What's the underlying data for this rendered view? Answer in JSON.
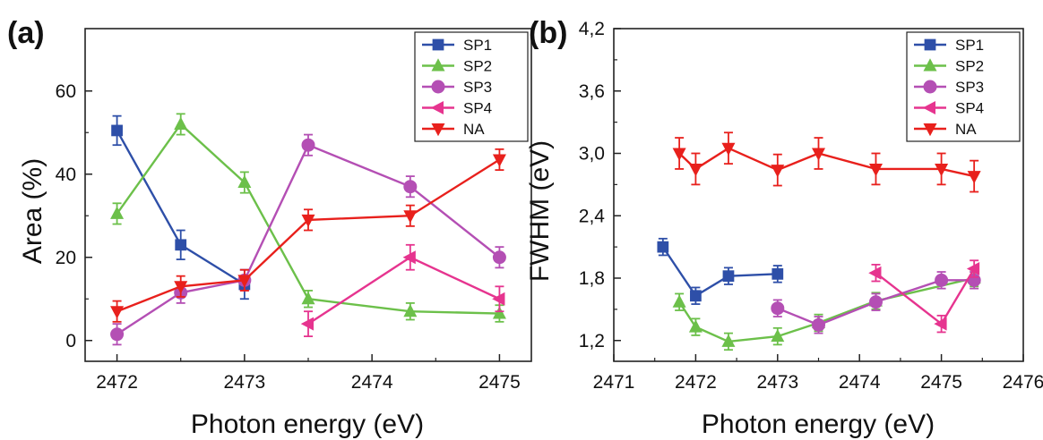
{
  "chart_data": [
    {
      "panel_label": "(a)",
      "type": "line",
      "xlabel": "Photon energy (eV)",
      "ylabel": "Area (%)",
      "xlim": [
        2471.75,
        2475.25
      ],
      "ylim": [
        -5,
        75
      ],
      "xticks": [
        2472,
        2473,
        2474,
        2475
      ],
      "xtick_labels": [
        "2472",
        "2473",
        "2474",
        "2475"
      ],
      "yticks": [
        0,
        20,
        40,
        60
      ],
      "ytick_labels": [
        "0",
        "20",
        "40",
        "60"
      ],
      "legend_position": "top-right",
      "series": [
        {
          "name": "SP1",
          "color": "#2e4fa8",
          "marker": "square",
          "points": [
            [
              2472,
              50.5,
              3.5
            ],
            [
              2472.5,
              23,
              3.5
            ],
            [
              2473,
              13.5,
              3.5
            ]
          ]
        },
        {
          "name": "SP2",
          "color": "#6cc04a",
          "marker": "triangle-up",
          "points": [
            [
              2472,
              30.5,
              2.5
            ],
            [
              2472.5,
              52,
              2.5
            ],
            [
              2473,
              38,
              2.5
            ],
            [
              2473.5,
              10,
              2
            ],
            [
              2474.3,
              7,
              2
            ],
            [
              2475,
              6.5,
              2
            ]
          ]
        },
        {
          "name": "SP3",
          "color": "#b44fb4",
          "marker": "circle",
          "points": [
            [
              2472,
              1.5,
              2.5
            ],
            [
              2472.5,
              11.5,
              2.5
            ],
            [
              2473,
              14.5,
              2.5
            ],
            [
              2473.5,
              47,
              2.5
            ],
            [
              2474.3,
              37,
              2.5
            ],
            [
              2475,
              20,
              2.5
            ]
          ]
        },
        {
          "name": "SP4",
          "color": "#e6348f",
          "marker": "triangle-left",
          "points": [
            [
              2473.5,
              4,
              3
            ],
            [
              2474.3,
              20,
              3
            ],
            [
              2475,
              10,
              3
            ]
          ]
        },
        {
          "name": "NA",
          "color": "#e8201c",
          "marker": "triangle-down",
          "points": [
            [
              2472,
              7,
              2.5
            ],
            [
              2472.5,
              13,
              2.5
            ],
            [
              2473,
              14.5,
              2.5
            ],
            [
              2473.5,
              29,
              2.5
            ],
            [
              2474.3,
              30,
              2.5
            ],
            [
              2475,
              43.5,
              2.5
            ]
          ]
        }
      ]
    },
    {
      "panel_label": "(b)",
      "type": "line",
      "xlabel": "Photon energy (eV)",
      "ylabel": "FWHM (eV)",
      "xlim": [
        2471,
        2476
      ],
      "ylim": [
        1.0,
        4.2
      ],
      "xticks": [
        2471,
        2472,
        2473,
        2474,
        2475,
        2476
      ],
      "xtick_labels": [
        "2471",
        "2472",
        "2473",
        "2474",
        "2475",
        "2476"
      ],
      "yticks": [
        1.2,
        1.8,
        2.4,
        3.0,
        3.6,
        4.2
      ],
      "ytick_labels": [
        "1,2",
        "1,8",
        "2,4",
        "3,0",
        "3,6",
        "4,2"
      ],
      "legend_position": "top-right",
      "series": [
        {
          "name": "SP1",
          "color": "#2e4fa8",
          "marker": "square",
          "points": [
            [
              2471.6,
              2.1,
              0.08
            ],
            [
              2472,
              1.63,
              0.08
            ],
            [
              2472.4,
              1.82,
              0.08
            ],
            [
              2473,
              1.84,
              0.08
            ]
          ]
        },
        {
          "name": "SP2",
          "color": "#6cc04a",
          "marker": "triangle-up",
          "points": [
            [
              2471.8,
              1.57,
              0.08
            ],
            [
              2472,
              1.33,
              0.08
            ],
            [
              2472.4,
              1.19,
              0.08
            ],
            [
              2473,
              1.24,
              0.08
            ],
            [
              2473.5,
              1.37,
              0.08
            ],
            [
              2474.2,
              1.58,
              0.08
            ],
            [
              2475.4,
              1.8,
              0.08
            ]
          ]
        },
        {
          "name": "SP3",
          "color": "#b44fb4",
          "marker": "circle",
          "points": [
            [
              2473,
              1.51,
              0.08
            ],
            [
              2473.5,
              1.35,
              0.08
            ],
            [
              2474.2,
              1.57,
              0.08
            ],
            [
              2475,
              1.78,
              0.08
            ],
            [
              2475.4,
              1.78,
              0.08
            ]
          ]
        },
        {
          "name": "SP4",
          "color": "#e6348f",
          "marker": "triangle-left",
          "points": [
            [
              2474.2,
              1.85,
              0.08
            ],
            [
              2475,
              1.36,
              0.08
            ],
            [
              2475.4,
              1.89,
              0.08
            ]
          ]
        },
        {
          "name": "NA",
          "color": "#e8201c",
          "marker": "triangle-down",
          "points": [
            [
              2471.8,
              3.0,
              0.15
            ],
            [
              2472,
              2.85,
              0.15
            ],
            [
              2472.4,
              3.05,
              0.15
            ],
            [
              2473,
              2.84,
              0.15
            ],
            [
              2473.5,
              3.0,
              0.15
            ],
            [
              2474.2,
              2.85,
              0.15
            ],
            [
              2475,
              2.85,
              0.15
            ],
            [
              2475.4,
              2.78,
              0.15
            ]
          ]
        }
      ]
    }
  ]
}
